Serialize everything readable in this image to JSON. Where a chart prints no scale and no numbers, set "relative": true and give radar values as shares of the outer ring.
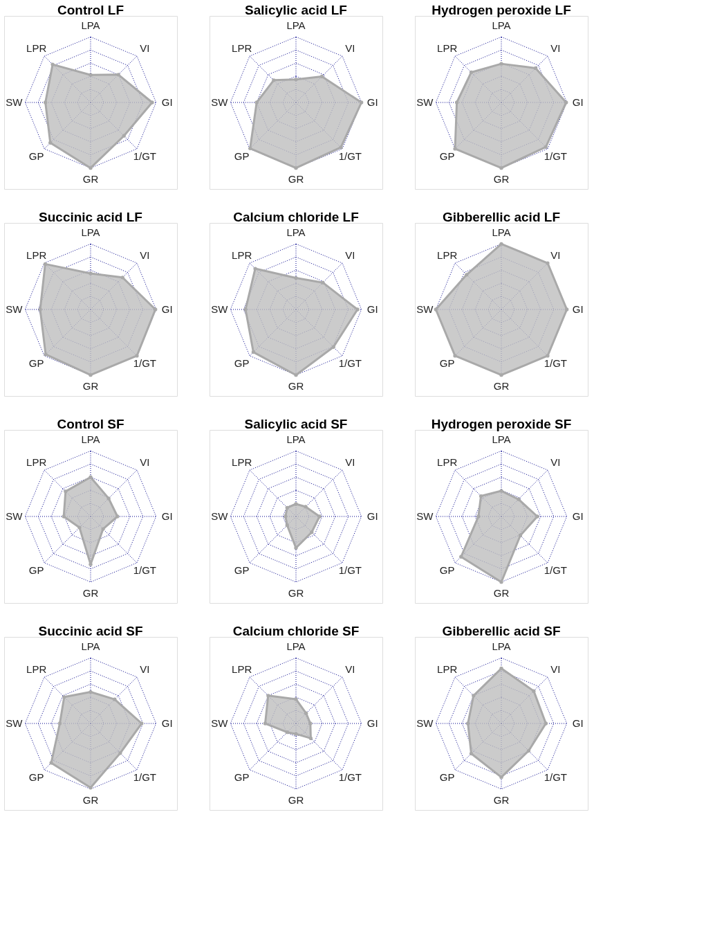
{
  "chart_data": [
    {
      "type": "radar",
      "title": "Control LF",
      "categories": [
        "LPA",
        "VI",
        "GI",
        "1/GT",
        "GR",
        "GP",
        "SW",
        "LPR"
      ],
      "relative": true,
      "grid": true,
      "marker": "circle",
      "series": [
        {
          "color": "#bebebe",
          "values": [
            0.42,
            0.6,
            0.94,
            0.72,
            1.0,
            0.87,
            0.69,
            0.82
          ]
        }
      ]
    },
    {
      "type": "radar",
      "title": "Salicylic acid LF",
      "categories": [
        "LPA",
        "VI",
        "GI",
        "1/GT",
        "GR",
        "GP",
        "SW",
        "LPR"
      ],
      "relative": true,
      "grid": true,
      "marker": "circle",
      "series": [
        {
          "color": "#bebebe",
          "values": [
            0.35,
            0.56,
            1.0,
            0.97,
            1.0,
            0.99,
            0.6,
            0.48
          ]
        }
      ]
    },
    {
      "type": "radar",
      "title": "Hydrogen peroxide LF",
      "categories": [
        "LPA",
        "VI",
        "GI",
        "1/GT",
        "GR",
        "GP",
        "SW",
        "LPR"
      ],
      "relative": true,
      "grid": true,
      "marker": "circle",
      "series": [
        {
          "color": "#bebebe",
          "values": [
            0.59,
            0.74,
            0.99,
            0.96,
            1.0,
            1.0,
            0.68,
            0.65
          ]
        }
      ]
    },
    {
      "type": "radar",
      "title": "Succinic acid LF",
      "categories": [
        "LPA",
        "VI",
        "GI",
        "1/GT",
        "GR",
        "GP",
        "SW",
        "LPR"
      ],
      "relative": true,
      "grid": true,
      "marker": "circle",
      "series": [
        {
          "color": "#bebebe",
          "values": [
            0.55,
            0.69,
            0.99,
            1.0,
            1.0,
            0.97,
            0.77,
            0.98
          ]
        }
      ]
    },
    {
      "type": "radar",
      "title": "Calcium chloride LF",
      "categories": [
        "LPA",
        "VI",
        "GI",
        "1/GT",
        "GR",
        "GP",
        "SW",
        "LPR"
      ],
      "relative": true,
      "grid": true,
      "marker": "circle",
      "series": [
        {
          "color": "#bebebe",
          "values": [
            0.48,
            0.58,
            0.94,
            0.81,
            1.0,
            0.92,
            0.77,
            0.88
          ]
        }
      ]
    },
    {
      "type": "radar",
      "title": "Gibberellic acid LF",
      "categories": [
        "LPA",
        "VI",
        "GI",
        "1/GT",
        "GR",
        "GP",
        "SW",
        "LPR"
      ],
      "relative": true,
      "grid": true,
      "marker": "circle",
      "series": [
        {
          "color": "#bebebe",
          "values": [
            1.0,
            1.0,
            1.0,
            1.0,
            1.0,
            1.0,
            1.0,
            0.75
          ]
        }
      ]
    },
    {
      "type": "radar",
      "title": "Control SF",
      "categories": [
        "LPA",
        "VI",
        "GI",
        "1/GT",
        "GR",
        "GP",
        "SW",
        "LPR"
      ],
      "relative": true,
      "grid": true,
      "marker": "circle",
      "series": [
        {
          "color": "#bebebe",
          "values": [
            0.6,
            0.39,
            0.41,
            0.27,
            0.73,
            0.24,
            0.41,
            0.54
          ]
        }
      ]
    },
    {
      "type": "radar",
      "title": "Salicylic acid SF",
      "categories": [
        "LPA",
        "VI",
        "GI",
        "1/GT",
        "GR",
        "GP",
        "SW",
        "LPR"
      ],
      "relative": true,
      "grid": true,
      "marker": "circle",
      "series": [
        {
          "color": "#bebebe",
          "values": [
            0.19,
            0.21,
            0.36,
            0.34,
            0.48,
            0.19,
            0.16,
            0.19
          ]
        }
      ]
    },
    {
      "type": "radar",
      "title": "Hydrogen peroxide SF",
      "categories": [
        "LPA",
        "VI",
        "GI",
        "1/GT",
        "GR",
        "GP",
        "SW",
        "LPR"
      ],
      "relative": true,
      "grid": true,
      "marker": "circle",
      "series": [
        {
          "color": "#bebebe",
          "values": [
            0.39,
            0.37,
            0.55,
            0.41,
            1.0,
            0.87,
            0.35,
            0.44
          ]
        }
      ]
    },
    {
      "type": "radar",
      "title": "Succinic acid SF",
      "categories": [
        "LPA",
        "VI",
        "GI",
        "1/GT",
        "GR",
        "GP",
        "SW",
        "LPR"
      ],
      "relative": true,
      "grid": true,
      "marker": "circle",
      "series": [
        {
          "color": "#bebebe",
          "values": [
            0.48,
            0.52,
            0.78,
            0.64,
            0.98,
            0.85,
            0.47,
            0.57
          ]
        }
      ]
    },
    {
      "type": "radar",
      "title": "Calcium chloride SF",
      "categories": [
        "LPA",
        "VI",
        "GI",
        "1/GT",
        "GR",
        "GP",
        "SW",
        "LPR"
      ],
      "relative": true,
      "grid": true,
      "marker": "circle",
      "series": [
        {
          "color": "#bebebe",
          "values": [
            0.37,
            0.22,
            0.22,
            0.32,
            0.16,
            0.19,
            0.47,
            0.6
          ]
        }
      ]
    },
    {
      "type": "radar",
      "title": "Gibberellic acid SF",
      "categories": [
        "LPA",
        "VI",
        "GI",
        "1/GT",
        "GR",
        "GP",
        "SW",
        "LPR"
      ],
      "relative": true,
      "grid": true,
      "marker": "circle",
      "series": [
        {
          "color": "#bebebe",
          "values": [
            0.84,
            0.7,
            0.68,
            0.59,
            0.82,
            0.65,
            0.51,
            0.6
          ]
        }
      ]
    }
  ]
}
